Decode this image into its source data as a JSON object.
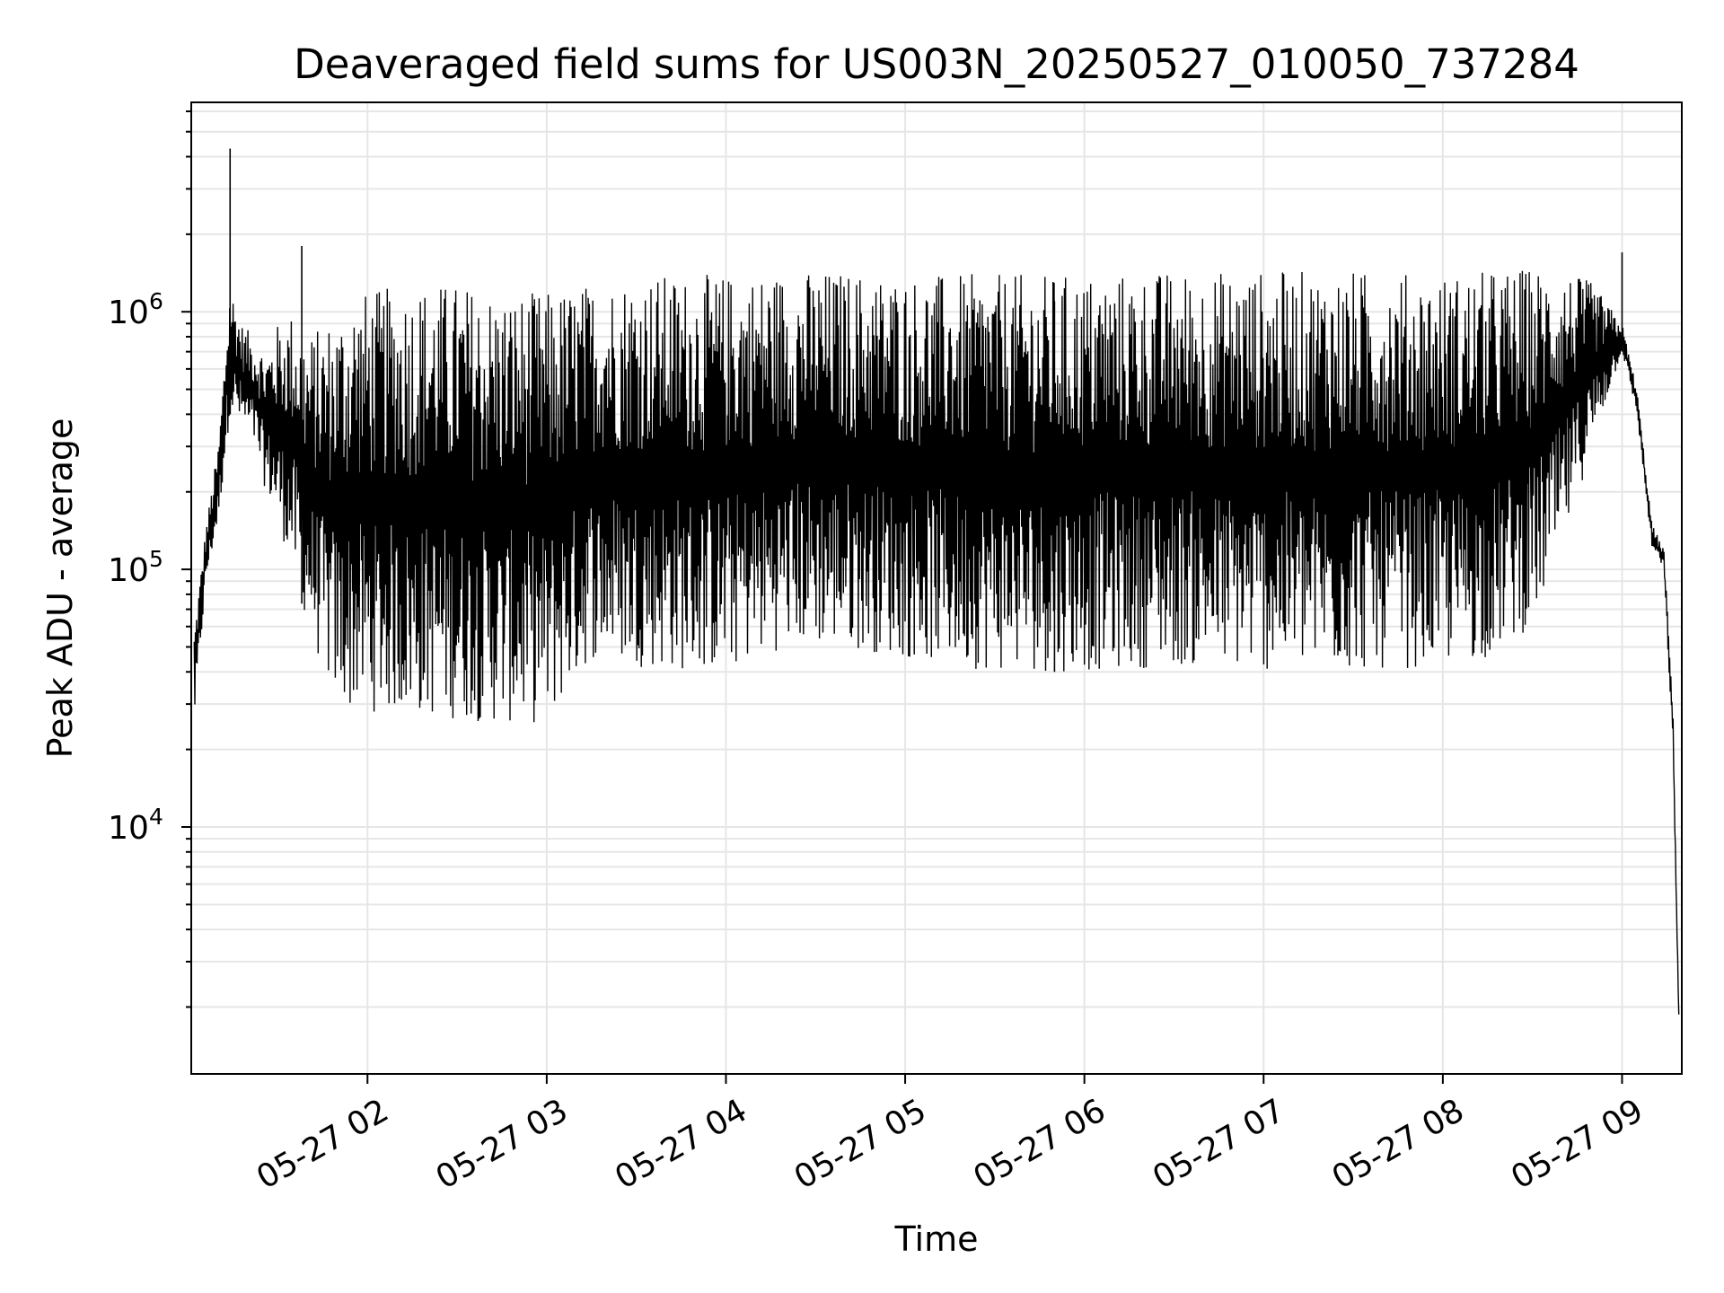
{
  "chart_data": {
    "type": "line",
    "title": "Deaveraged field sums for US003N_20250527_010050_737284",
    "xlabel": "Time",
    "ylabel": "Peak ADU - average",
    "yscale": "log",
    "ylim": [
      1100,
      65000
    ],
    "xlim": [
      "2025-05-27 01:01",
      "2025-05-27 09:20"
    ],
    "grid": true,
    "line_color": "#000000",
    "grid_color": "#e6e6e6",
    "x_ticks": [
      {
        "value": "2025-05-27 02:00",
        "label": "05-27 02"
      },
      {
        "value": "2025-05-27 03:00",
        "label": "05-27 03"
      },
      {
        "value": "2025-05-27 04:00",
        "label": "05-27 04"
      },
      {
        "value": "2025-05-27 05:00",
        "label": "05-27 05"
      },
      {
        "value": "2025-05-27 06:00",
        "label": "05-27 06"
      },
      {
        "value": "2025-05-27 07:00",
        "label": "05-27 07"
      },
      {
        "value": "2025-05-27 08:00",
        "label": "05-27 08"
      },
      {
        "value": "2025-05-27 09:00",
        "label": "05-27 09"
      }
    ],
    "y_ticks": [
      {
        "value": 10000,
        "label": "10^4"
      },
      {
        "value": 100000,
        "label": "10^5"
      },
      {
        "value": 1000000,
        "label": "10^6"
      }
    ],
    "envelope": {
      "x": [
        "2025-05-27 01:02",
        "2025-05-27 01:06",
        "2025-05-27 01:10",
        "2025-05-27 01:14",
        "2025-05-27 01:18",
        "2025-05-27 01:22",
        "2025-05-27 01:26",
        "2025-05-27 01:30",
        "2025-05-27 01:35",
        "2025-05-27 01:40",
        "2025-05-27 01:45",
        "2025-05-27 01:50",
        "2025-05-27 01:55",
        "2025-05-27 02:00",
        "2025-05-27 02:15",
        "2025-05-27 02:30",
        "2025-05-27 02:45",
        "2025-05-27 03:00",
        "2025-05-27 03:15",
        "2025-05-27 03:30",
        "2025-05-27 03:45",
        "2025-05-27 04:00",
        "2025-05-27 04:20",
        "2025-05-27 04:40",
        "2025-05-27 05:00",
        "2025-05-27 05:30",
        "2025-05-27 06:00",
        "2025-05-27 06:30",
        "2025-05-27 07:00",
        "2025-05-27 07:30",
        "2025-05-27 08:00",
        "2025-05-27 08:15",
        "2025-05-27 08:30",
        "2025-05-27 08:40",
        "2025-05-27 08:50",
        "2025-05-27 09:00",
        "2025-05-27 09:05",
        "2025-05-27 09:10",
        "2025-05-27 09:14",
        "2025-05-27 09:17",
        "2025-05-27 09:19"
      ],
      "high": [
        60000,
        150000,
        300000,
        1300000,
        900000,
        800000,
        700000,
        900000,
        1000000,
        800000,
        900000,
        1000000,
        1200000,
        1200000,
        1300000,
        1300000,
        1200000,
        1200000,
        1300000,
        1400000,
        1400000,
        1400000,
        1450000,
        1450000,
        1400000,
        1400000,
        1400000,
        1450000,
        1450000,
        1450000,
        1400000,
        1450000,
        1500000,
        1450000,
        1300000,
        900000,
        500000,
        150000,
        120000,
        30000,
        1900
      ],
      "low": [
        25000,
        90000,
        150000,
        400000,
        350000,
        300000,
        200000,
        150000,
        100000,
        60000,
        40000,
        30000,
        28000,
        28000,
        27000,
        26000,
        25000,
        25000,
        45000,
        42000,
        40000,
        40000,
        50000,
        50000,
        45000,
        40000,
        40000,
        42000,
        40000,
        40000,
        42000,
        45000,
        60000,
        120000,
        300000,
        700000,
        400000,
        120000,
        100000,
        20000,
        1800
      ],
      "spikes": [
        {
          "x": "2025-05-27 01:14",
          "y": 4300000
        },
        {
          "x": "2025-05-27 01:38",
          "y": 1800000
        },
        {
          "x": "2025-05-27 05:50",
          "y": 1100000
        },
        {
          "x": "2025-05-27 09:00",
          "y": 1700000
        }
      ]
    }
  }
}
